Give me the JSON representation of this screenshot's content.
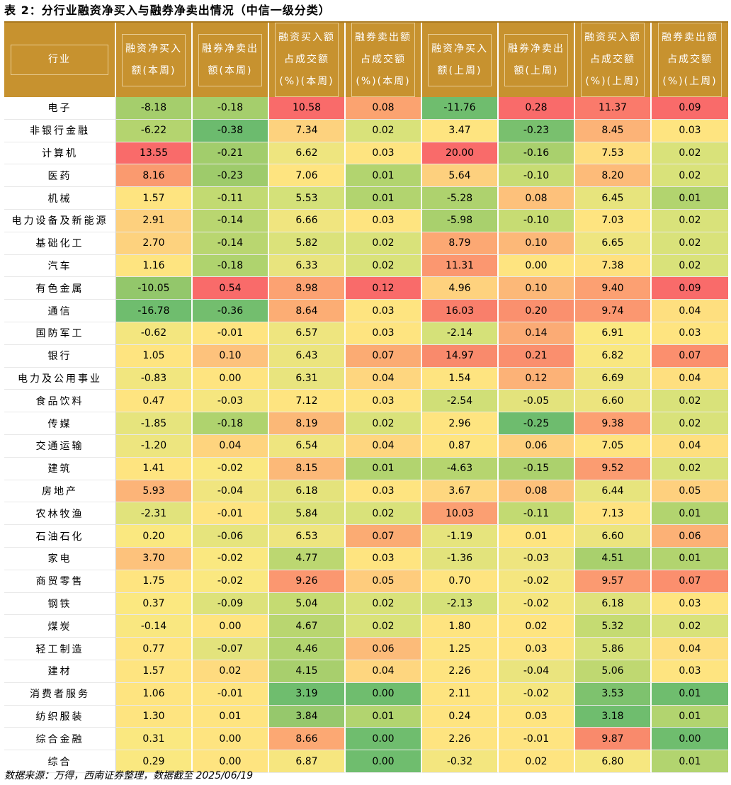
{
  "title": "表 2：分行业融资净买入与融券净卖出情况（中信一级分类）",
  "source": "数据来源：万得，西南证券整理，数据截至 2025/06/19",
  "table": {
    "headers": [
      "行业",
      "融资净买入\n额(本周)",
      "融券净卖出\n额(本周)",
      "融资买入额\n占成交额\n(%)(本周)",
      "融券卖出额\n占成交额\n(%)(本周)",
      "融资净买入\n额(上周)",
      "融券净卖出\n额(上周)",
      "融资买入额\n占成交额\n(%)(上周)",
      "融券卖出额\n占成交额\n(%)(上周)"
    ],
    "rows": [
      {
        "name": "电子",
        "values": [
          "-8.18",
          "-0.18",
          "10.58",
          "0.08",
          "-11.76",
          "0.28",
          "11.37",
          "0.09"
        ],
        "colors": [
          "#a5ce6c",
          "#a5ce6c",
          "#f96b6a",
          "#fba370",
          "#6fbd6e",
          "#f96b6a",
          "#fa7a6b",
          "#f96b6a"
        ]
      },
      {
        "name": "非银行金融",
        "values": [
          "-6.22",
          "-0.38",
          "7.34",
          "0.02",
          "3.47",
          "-0.23",
          "8.45",
          "0.03"
        ],
        "colors": [
          "#b4d46f",
          "#6cbb6e",
          "#fdd27e",
          "#d9e27a",
          "#fee480",
          "#79c06e",
          "#fcb377",
          "#fee480"
        ]
      },
      {
        "name": "计算机",
        "values": [
          "13.55",
          "-0.21",
          "6.62",
          "0.03",
          "20.00",
          "-0.16",
          "7.53",
          "0.02"
        ],
        "colors": [
          "#f96b6a",
          "#a2cd6c",
          "#eee57f",
          "#fee480",
          "#f96b6a",
          "#a9d06d",
          "#fedd7f",
          "#d9e27a"
        ]
      },
      {
        "name": "医药",
        "values": [
          "8.16",
          "-0.23",
          "7.06",
          "0.01",
          "5.64",
          "-0.10",
          "8.20",
          "0.02"
        ],
        "colors": [
          "#fa9a6f",
          "#9ecb6b",
          "#fee480",
          "#b2d46f",
          "#fdd07e",
          "#c7dc73",
          "#fdbb79",
          "#d9e27a"
        ]
      },
      {
        "name": "机械",
        "values": [
          "1.57",
          "-0.11",
          "5.53",
          "0.01",
          "-5.28",
          "0.08",
          "6.45",
          "0.01"
        ],
        "colors": [
          "#fee480",
          "#c2da72",
          "#d4e179",
          "#b2d46f",
          "#aed26e",
          "#fdc17b",
          "#e7e47d",
          "#b2d46f"
        ]
      },
      {
        "name": "电力设备及新能源",
        "values": [
          "2.91",
          "-0.14",
          "6.66",
          "0.03",
          "-5.98",
          "-0.10",
          "7.03",
          "0.02"
        ],
        "colors": [
          "#fdd07e",
          "#b9d670",
          "#f0e57f",
          "#fee480",
          "#a9d06d",
          "#c7dc73",
          "#fee480",
          "#d9e27a"
        ]
      },
      {
        "name": "基础化工",
        "values": [
          "2.70",
          "-0.14",
          "5.82",
          "0.02",
          "8.79",
          "0.10",
          "6.65",
          "0.02"
        ],
        "colors": [
          "#fdd27e",
          "#b9d670",
          "#dbe27a",
          "#d9e27a",
          "#fca873",
          "#fcb878",
          "#eee57f",
          "#d9e27a"
        ]
      },
      {
        "name": "汽车",
        "values": [
          "1.16",
          "-0.18",
          "6.33",
          "0.02",
          "11.31",
          "0.00",
          "7.38",
          "0.02"
        ],
        "colors": [
          "#fee480",
          "#afd36e",
          "#e8e47e",
          "#d9e27a",
          "#fb9770",
          "#fee480",
          "#fee17f",
          "#d9e27a"
        ]
      },
      {
        "name": "有色金属",
        "values": [
          "-10.05",
          "0.54",
          "8.98",
          "0.12",
          "4.96",
          "0.10",
          "9.40",
          "0.09"
        ],
        "colors": [
          "#93c76b",
          "#f96b6a",
          "#fca272",
          "#f96b6a",
          "#fed27e",
          "#fcb878",
          "#fca072",
          "#f96b6a"
        ]
      },
      {
        "name": "通信",
        "values": [
          "-16.78",
          "-0.36",
          "8.64",
          "0.03",
          "16.03",
          "0.20",
          "9.74",
          "0.04"
        ],
        "colors": [
          "#6fbd6e",
          "#73be6e",
          "#fcad74",
          "#fee480",
          "#f97f6b",
          "#fa906e",
          "#fb9770",
          "#fedf7f"
        ]
      },
      {
        "name": "国防军工",
        "values": [
          "-0.62",
          "-0.01",
          "6.57",
          "0.03",
          "-2.14",
          "0.14",
          "6.91",
          "0.03"
        ],
        "colors": [
          "#f3e67f",
          "#fee480",
          "#eee57f",
          "#fee480",
          "#d5e179",
          "#fbab75",
          "#fbe880",
          "#fee480"
        ]
      },
      {
        "name": "银行",
        "values": [
          "1.05",
          "0.10",
          "6.43",
          "0.07",
          "14.97",
          "0.21",
          "6.82",
          "0.07"
        ],
        "colors": [
          "#fee480",
          "#fdc27c",
          "#ebe47e",
          "#fbab73",
          "#f98a6c",
          "#fa8f6e",
          "#f9e780",
          "#fb8f6e"
        ]
      },
      {
        "name": "电力及公用事业",
        "values": [
          "-0.83",
          "0.00",
          "6.31",
          "0.04",
          "1.54",
          "0.12",
          "6.69",
          "0.04"
        ],
        "colors": [
          "#f1e67f",
          "#fee480",
          "#e8e47e",
          "#fed67f",
          "#fee480",
          "#fcb277",
          "#efe57f",
          "#fedf7f"
        ]
      },
      {
        "name": "食品饮料",
        "values": [
          "0.47",
          "-0.03",
          "7.12",
          "0.03",
          "-2.54",
          "-0.05",
          "6.60",
          "0.02"
        ],
        "colors": [
          "#fee480",
          "#f5e67f",
          "#fee480",
          "#fee480",
          "#d0df77",
          "#e3e37c",
          "#ece47e",
          "#d9e27a"
        ]
      },
      {
        "name": "传媒",
        "values": [
          "-1.85",
          "-0.18",
          "8.19",
          "0.02",
          "2.96",
          "-0.25",
          "9.38",
          "0.02"
        ],
        "colors": [
          "#e6e47d",
          "#afd36e",
          "#fbb877",
          "#d9e27a",
          "#fee480",
          "#6ebc6e",
          "#fca072",
          "#d9e27a"
        ]
      },
      {
        "name": "交通运输",
        "values": [
          "-1.20",
          "0.04",
          "6.54",
          "0.04",
          "0.87",
          "0.06",
          "7.05",
          "0.04"
        ],
        "colors": [
          "#ede57f",
          "#fed47e",
          "#eee57f",
          "#fed67f",
          "#fee480",
          "#fed07e",
          "#fee480",
          "#fedf7f"
        ]
      },
      {
        "name": "建筑",
        "values": [
          "1.41",
          "-0.02",
          "8.15",
          "0.01",
          "-4.63",
          "-0.15",
          "9.52",
          "0.02"
        ],
        "colors": [
          "#fee480",
          "#fae880",
          "#fcb978",
          "#b2d46f",
          "#b6d56f",
          "#acd16d",
          "#fb9c71",
          "#d9e27a"
        ]
      },
      {
        "name": "房地产",
        "values": [
          "5.93",
          "-0.04",
          "6.18",
          "0.03",
          "3.67",
          "0.08",
          "6.44",
          "0.05"
        ],
        "colors": [
          "#fcb478",
          "#f0e57f",
          "#e4e37c",
          "#fee480",
          "#fed77f",
          "#fdc17b",
          "#e7e47d",
          "#fed07e"
        ]
      },
      {
        "name": "农林牧渔",
        "values": [
          "-2.31",
          "-0.01",
          "5.84",
          "0.02",
          "10.03",
          "-0.11",
          "7.13",
          "0.01"
        ],
        "colors": [
          "#e1e37c",
          "#fee480",
          "#dbe27a",
          "#d9e27a",
          "#fb9f72",
          "#c2da72",
          "#fee380",
          "#b2d46f"
        ]
      },
      {
        "name": "石油石化",
        "values": [
          "0.20",
          "-0.06",
          "6.53",
          "0.07",
          "-1.19",
          "0.01",
          "6.60",
          "0.06"
        ],
        "colors": [
          "#fae880",
          "#e6e47d",
          "#eee57f",
          "#fbab73",
          "#e6e47d",
          "#fee480",
          "#ece47e",
          "#fcb176"
        ]
      },
      {
        "name": "家电",
        "values": [
          "3.70",
          "-0.02",
          "4.77",
          "0.03",
          "-1.36",
          "-0.03",
          "4.51",
          "0.01"
        ],
        "colors": [
          "#fdc27c",
          "#fae880",
          "#bcd771",
          "#fee480",
          "#e2e37c",
          "#eee57f",
          "#a9d06d",
          "#b2d46f"
        ]
      },
      {
        "name": "商贸零售",
        "values": [
          "1.75",
          "-0.02",
          "9.26",
          "0.05",
          "0.70",
          "-0.02",
          "9.57",
          "0.07"
        ],
        "colors": [
          "#fee480",
          "#fae880",
          "#fb9770",
          "#fecc7d",
          "#fee480",
          "#f5e67f",
          "#fb9a71",
          "#fb8f6e"
        ]
      },
      {
        "name": "钢铁",
        "values": [
          "0.37",
          "-0.09",
          "5.04",
          "0.02",
          "-2.13",
          "-0.02",
          "6.18",
          "0.03"
        ],
        "colors": [
          "#fbe880",
          "#dde27a",
          "#c5db72",
          "#d9e27a",
          "#d5e179",
          "#f5e67f",
          "#dfe27b",
          "#fee480"
        ]
      },
      {
        "name": "煤炭",
        "values": [
          "-0.14",
          "0.00",
          "4.67",
          "0.02",
          "1.80",
          "0.02",
          "5.32",
          "0.02"
        ],
        "colors": [
          "#f9e780",
          "#fee480",
          "#b9d670",
          "#d9e27a",
          "#fee480",
          "#fee480",
          "#c5db72",
          "#d9e27a"
        ]
      },
      {
        "name": "轻工制造",
        "values": [
          "0.77",
          "-0.07",
          "4.46",
          "0.06",
          "1.25",
          "0.03",
          "5.86",
          "0.04"
        ],
        "colors": [
          "#fee480",
          "#e3e37c",
          "#b2d46f",
          "#fcbb79",
          "#fee480",
          "#fee480",
          "#d7e179",
          "#fedf7f"
        ]
      },
      {
        "name": "建材",
        "values": [
          "1.57",
          "0.02",
          "4.15",
          "0.04",
          "2.26",
          "-0.04",
          "5.06",
          "0.03"
        ],
        "colors": [
          "#fee480",
          "#fedb7f",
          "#a8cf6d",
          "#fed67f",
          "#fee480",
          "#eae47e",
          "#bfd871",
          "#fee480"
        ]
      },
      {
        "name": "消费者服务",
        "values": [
          "1.06",
          "-0.01",
          "3.19",
          "0.00",
          "2.11",
          "-0.02",
          "3.53",
          "0.01"
        ],
        "colors": [
          "#fee480",
          "#fee480",
          "#6fbd6e",
          "#6fbd6e",
          "#fee480",
          "#f5e67f",
          "#7ec26e",
          "#6fbd6e"
        ]
      },
      {
        "name": "纺织服装",
        "values": [
          "1.30",
          "0.01",
          "3.84",
          "0.01",
          "0.24",
          "0.03",
          "3.18",
          "0.01"
        ],
        "colors": [
          "#fee480",
          "#fee480",
          "#96c86c",
          "#b2d46f",
          "#fee480",
          "#fee480",
          "#6fbd6e",
          "#b2d46f"
        ]
      },
      {
        "name": "综合金融",
        "values": [
          "0.31",
          "0.00",
          "8.66",
          "0.00",
          "2.26",
          "-0.01",
          "9.87",
          "0.00"
        ],
        "colors": [
          "#fae880",
          "#fee480",
          "#fca873",
          "#6fbd6e",
          "#fee480",
          "#fee480",
          "#f98a6c",
          "#6fbd6e"
        ]
      },
      {
        "name": "综合",
        "values": [
          "0.29",
          "0.00",
          "6.87",
          "0.00",
          "-0.32",
          "0.02",
          "6.80",
          "0.01"
        ],
        "colors": [
          "#fae880",
          "#fee480",
          "#f6e67f",
          "#6fbd6e",
          "#f3e67f",
          "#fee480",
          "#f6e780",
          "#b2d46f"
        ]
      }
    ]
  }
}
